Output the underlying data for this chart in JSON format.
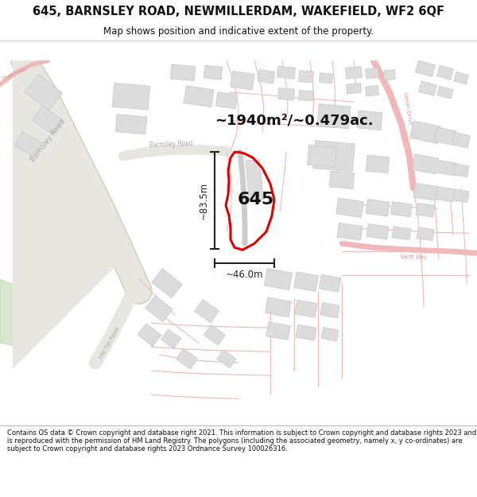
{
  "title": "645, BARNSLEY ROAD, NEWMILLERDAM, WAKEFIELD, WF2 6QF",
  "subtitle": "Map shows position and indicative extent of the property.",
  "area_text": "~1940m²/~0.479ac.",
  "label_645": "645",
  "dim_vertical": "~83.5m",
  "dim_horizontal": "~46.0m",
  "footer": "Contains OS data © Crown copyright and database right 2021. This information is subject to Crown copyright and database rights 2023 and is reproduced with the permission of HM Land Registry. The polygons (including the associated geometry, namely x, y co-ordinates) are subject to Crown copyright and database rights 2023 Ordnance Survey 100026316.",
  "bg_color": "#ffffff",
  "map_bg": "#f9f7f5",
  "road_fill": "#e8e6e0",
  "road_line": "#d0ccc0",
  "pink_road": "#f0b8b8",
  "building_fill": "#dcdcdc",
  "building_edge": "#c8c8c8",
  "green_fill": "#d8e8d0",
  "green_edge": "#b8d8b0",
  "plot_color": "#dd0000",
  "dim_color": "#222222",
  "road_text": "#aaaaaa",
  "barnsley_road_label": "Barnsley Road",
  "hill_top_road_label": "Hill Top Road",
  "heron_drive_label": "Heron Drive",
  "swift_way_label": "Swift Way",
  "sage_lane_label": "Sage Lane",
  "title_fontsize": 10.5,
  "subtitle_fontsize": 8.5,
  "footer_fontsize": 6.0
}
